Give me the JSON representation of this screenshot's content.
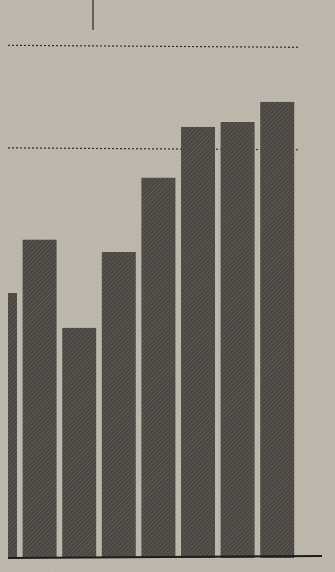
{
  "chart_data": {
    "type": "bar",
    "values": [
      64.6,
      77.6,
      56.1,
      74.6,
      92.7,
      105.1,
      106.3,
      111.2
    ],
    "color": "#4a4742",
    "ylim": [
      0,
      128
    ],
    "grid_values": [
      100,
      125
    ],
    "grid": true
  }
}
